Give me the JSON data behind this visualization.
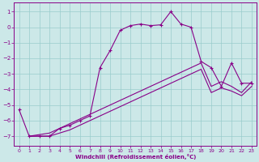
{
  "xlabel": "Windchill (Refroidissement éolien,°C)",
  "background_color": "#cce8e8",
  "grid_color": "#99cccc",
  "line_color": "#880088",
  "xlim": [
    -0.5,
    23.5
  ],
  "ylim": [
    -7.6,
    1.6
  ],
  "yticks": [
    1,
    0,
    -1,
    -2,
    -3,
    -4,
    -5,
    -6,
    -7
  ],
  "xticks": [
    0,
    1,
    2,
    3,
    4,
    5,
    6,
    7,
    8,
    9,
    10,
    11,
    12,
    13,
    14,
    15,
    16,
    17,
    18,
    19,
    20,
    21,
    22,
    23
  ],
  "curve1_x": [
    0,
    1,
    2,
    3,
    4,
    5,
    6,
    7,
    8,
    9,
    10,
    11,
    12,
    13,
    14,
    15,
    16,
    17,
    18,
    19,
    20,
    21,
    22,
    23
  ],
  "curve1_y": [
    -5.3,
    -7.0,
    -7.0,
    -7.0,
    -6.5,
    -6.3,
    -6.0,
    -5.7,
    -2.6,
    -1.5,
    -0.2,
    0.1,
    0.2,
    0.1,
    0.15,
    1.0,
    0.2,
    0.0,
    -2.2,
    -2.6,
    -3.8,
    -2.3,
    -3.6,
    -3.6
  ],
  "line2_x": [
    1,
    2,
    3,
    4,
    5,
    6,
    7,
    8,
    9,
    10,
    11,
    12,
    13,
    14,
    15,
    16,
    17,
    18,
    19,
    20,
    21,
    22,
    23
  ],
  "line2_y": [
    -7.0,
    -6.9,
    -6.8,
    -6.5,
    -6.2,
    -5.9,
    -5.6,
    -5.3,
    -5.0,
    -4.7,
    -4.4,
    -4.1,
    -3.8,
    -3.5,
    -3.2,
    -2.9,
    -2.6,
    -2.3,
    -3.8,
    -3.5,
    -3.8,
    -4.2,
    -3.5
  ],
  "line3_x": [
    1,
    2,
    3,
    4,
    5,
    6,
    7,
    8,
    9,
    10,
    11,
    12,
    13,
    14,
    15,
    16,
    17,
    18,
    19,
    20,
    21,
    22,
    23
  ],
  "line3_y": [
    -7.0,
    -7.0,
    -7.0,
    -6.8,
    -6.6,
    -6.3,
    -6.0,
    -5.7,
    -5.4,
    -5.1,
    -4.8,
    -4.5,
    -4.2,
    -3.9,
    -3.6,
    -3.3,
    -3.0,
    -2.7,
    -4.2,
    -3.9,
    -4.1,
    -4.4,
    -3.8
  ],
  "xlabel_fontsize": 5,
  "tick_labelsize": 5,
  "linewidth": 0.8,
  "markersize": 3
}
